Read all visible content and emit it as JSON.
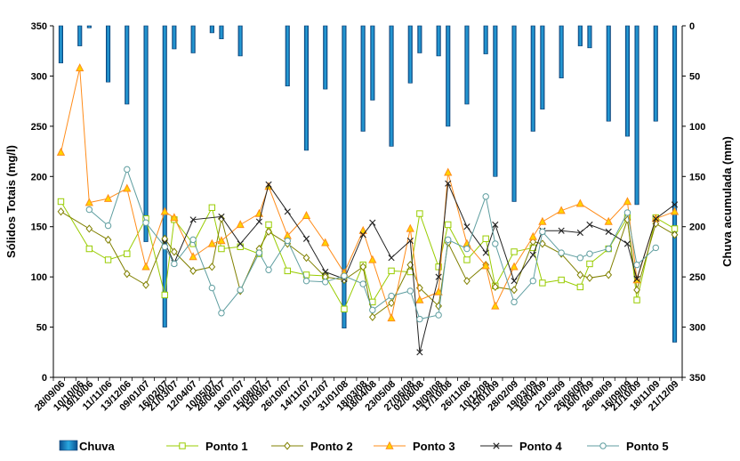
{
  "chart_data": {
    "type": "bar+line",
    "title": "",
    "ylabel_left": "Sólidos Totais (mg/l)",
    "ylabel_right": "Chuva acumulada (mm)",
    "ylim_left": [
      0,
      350
    ],
    "yticks_left": [
      "0",
      "50",
      "100",
      "150",
      "200",
      "250",
      "300",
      "350"
    ],
    "ylim_right_inverted": [
      0,
      350
    ],
    "yticks_right": [
      "0",
      "50",
      "100",
      "150",
      "200",
      "250",
      "300",
      "350"
    ],
    "categories": [
      "28/09/06",
      "10/10/06",
      "19/10/06",
      "11/11/06",
      "13/12/06",
      "09/01/07",
      "16/02/07",
      "21/03/07",
      "12/04/07",
      "10/05/07",
      "28/06/07",
      "18/07/07",
      "15/08/07",
      "15/09/07",
      "26/10/07",
      "14/11/07",
      "10/12/07",
      "31/01/08",
      "18/03/08",
      "18/04/08",
      "23/05/08",
      "27/06/08",
      "02/08/08",
      "19/09/08",
      "17/10/08",
      "26/11/08",
      "10/12/08",
      "15/01/09",
      "28/02/09",
      "19/03/09",
      "16/04/09",
      "21/05/09",
      "26/06/09",
      "16/07/09",
      "26/08/09",
      "16/09/09",
      "21/10/09",
      "18/11/09",
      "21/12/09"
    ],
    "n_slots": 56,
    "tick_slots": [
      0,
      2,
      3,
      5,
      7,
      9,
      11,
      12,
      14,
      16,
      17,
      19,
      21,
      22,
      24,
      26,
      28,
      30,
      32,
      33,
      35,
      37,
      38,
      40,
      41,
      43,
      45,
      46,
      48,
      50,
      51,
      53,
      55,
      56,
      58,
      60,
      61,
      63,
      65
    ],
    "series": [
      {
        "name": "Chuva",
        "type": "bar",
        "axis": "right",
        "color": "#1f8fc8",
        "points": [
          [
            0,
            37
          ],
          [
            1,
            20
          ],
          [
            2,
            2
          ],
          [
            3,
            56
          ],
          [
            4,
            78
          ],
          [
            5,
            215
          ],
          [
            6,
            300
          ],
          [
            7,
            23
          ],
          [
            8,
            27
          ],
          [
            9,
            7
          ],
          [
            10,
            13
          ],
          [
            11,
            30
          ],
          [
            12,
            0
          ],
          [
            13,
            0
          ],
          [
            14,
            60
          ],
          [
            15,
            124
          ],
          [
            16,
            63
          ],
          [
            17,
            301
          ],
          [
            18,
            105
          ],
          [
            19,
            74
          ],
          [
            20,
            120
          ],
          [
            21,
            57
          ],
          [
            22,
            27
          ],
          [
            23,
            30
          ],
          [
            24,
            100
          ],
          [
            25,
            78
          ],
          [
            26,
            28
          ],
          [
            27,
            150
          ],
          [
            28,
            175
          ],
          [
            29,
            105
          ],
          [
            30,
            83
          ],
          [
            31,
            52
          ],
          [
            32,
            20
          ],
          [
            33,
            22
          ],
          [
            34,
            95
          ],
          [
            35,
            110
          ],
          [
            36,
            178
          ],
          [
            37,
            95
          ],
          [
            38,
            315
          ]
        ]
      },
      {
        "name": "Ponto 1",
        "type": "line",
        "axis": "left",
        "color": "#99cc00",
        "marker": "square",
        "points": [
          [
            0,
            175
          ],
          [
            2,
            128
          ],
          [
            3,
            117
          ],
          [
            4,
            123
          ],
          [
            5,
            158
          ],
          [
            6,
            82
          ],
          [
            7,
            157
          ],
          [
            8,
            133
          ],
          [
            9,
            169
          ],
          [
            10,
            128
          ],
          [
            11,
            130
          ],
          [
            12,
            123
          ],
          [
            13,
            152
          ],
          [
            14,
            106
          ],
          [
            15,
            102
          ],
          [
            16,
            101
          ],
          [
            17,
            68
          ],
          [
            18,
            112
          ],
          [
            19,
            75
          ],
          [
            20,
            106
          ],
          [
            21,
            105
          ],
          [
            22,
            163
          ],
          [
            23,
            110
          ],
          [
            24,
            152
          ],
          [
            25,
            117
          ],
          [
            26,
            138
          ],
          [
            27,
            91
          ],
          [
            28,
            125
          ],
          [
            29,
            129
          ],
          [
            30,
            94
          ],
          [
            31,
            97
          ],
          [
            32,
            90
          ],
          [
            33,
            113
          ],
          [
            34,
            128
          ],
          [
            35,
            159
          ],
          [
            36,
            77
          ],
          [
            37,
            159
          ],
          [
            38,
            148
          ]
        ]
      },
      {
        "name": "Ponto 2",
        "type": "line",
        "axis": "left",
        "color": "#808000",
        "marker": "diamond",
        "points": [
          [
            0,
            165
          ],
          [
            2,
            148
          ],
          [
            3,
            137
          ],
          [
            4,
            103
          ],
          [
            5,
            92
          ],
          [
            6,
            138
          ],
          [
            7,
            125
          ],
          [
            8,
            106
          ],
          [
            9,
            110
          ],
          [
            10,
            158
          ],
          [
            11,
            86
          ],
          [
            12,
            128
          ],
          [
            13,
            145
          ],
          [
            14,
            133
          ],
          [
            15,
            119
          ],
          [
            16,
            100
          ],
          [
            17,
            97
          ],
          [
            18,
            110
          ],
          [
            19,
            60
          ],
          [
            20,
            74
          ],
          [
            21,
            112
          ],
          [
            22,
            89
          ],
          [
            23,
            71
          ],
          [
            24,
            134
          ],
          [
            25,
            96
          ],
          [
            26,
            112
          ],
          [
            27,
            90
          ],
          [
            28,
            87
          ],
          [
            29,
            135
          ],
          [
            30,
            133
          ],
          [
            31,
            123
          ],
          [
            32,
            102
          ],
          [
            33,
            99
          ],
          [
            34,
            102
          ],
          [
            35,
            157
          ],
          [
            36,
            87
          ],
          [
            37,
            153
          ],
          [
            38,
            142
          ]
        ]
      },
      {
        "name": "Ponto 3",
        "type": "line",
        "axis": "left",
        "color": "#ff8c1a",
        "marker": "triangle",
        "points": [
          [
            0,
            224
          ],
          [
            1,
            308
          ],
          [
            2,
            174
          ],
          [
            3,
            178
          ],
          [
            4,
            188
          ],
          [
            5,
            110
          ],
          [
            6,
            165
          ],
          [
            7,
            159
          ],
          [
            8,
            120
          ],
          [
            9,
            133
          ],
          [
            10,
            136
          ],
          [
            11,
            152
          ],
          [
            12,
            163
          ],
          [
            13,
            190
          ],
          [
            14,
            141
          ],
          [
            15,
            161
          ],
          [
            16,
            134
          ],
          [
            17,
            104
          ],
          [
            18,
            146
          ],
          [
            19,
            117
          ],
          [
            20,
            59
          ],
          [
            21,
            148
          ],
          [
            22,
            77
          ],
          [
            23,
            85
          ],
          [
            24,
            204
          ],
          [
            25,
            133
          ],
          [
            26,
            111
          ],
          [
            27,
            71
          ],
          [
            28,
            110
          ],
          [
            29,
            140
          ],
          [
            30,
            155
          ],
          [
            31,
            166
          ],
          [
            32,
            173
          ],
          [
            34,
            155
          ],
          [
            35,
            175
          ],
          [
            36,
            97
          ],
          [
            37,
            158
          ],
          [
            38,
            165
          ]
        ]
      },
      {
        "name": "Ponto 4",
        "type": "line",
        "axis": "left",
        "color": "#222222",
        "marker": "x",
        "points": [
          [
            6,
            134
          ],
          [
            7,
            114
          ],
          [
            8,
            157
          ],
          [
            10,
            160
          ],
          [
            11,
            133
          ],
          [
            12,
            155
          ],
          [
            13,
            192
          ],
          [
            14,
            165
          ],
          [
            15,
            138
          ],
          [
            16,
            105
          ],
          [
            17,
            98
          ],
          [
            18,
            142
          ],
          [
            19,
            154
          ],
          [
            20,
            119
          ],
          [
            21,
            136
          ],
          [
            22,
            25
          ],
          [
            23,
            100
          ],
          [
            24,
            193
          ],
          [
            25,
            150
          ],
          [
            26,
            124
          ],
          [
            27,
            152
          ],
          [
            28,
            96
          ],
          [
            29,
            122
          ],
          [
            30,
            146
          ],
          [
            31,
            146
          ],
          [
            32,
            144
          ],
          [
            33,
            152
          ],
          [
            34,
            145
          ],
          [
            35,
            133
          ],
          [
            36,
            98
          ],
          [
            37,
            158
          ],
          [
            38,
            172
          ]
        ]
      },
      {
        "name": "Ponto 5",
        "type": "line",
        "axis": "left",
        "color": "#5f9ea0",
        "marker": "circle",
        "points": [
          [
            2,
            167
          ],
          [
            3,
            151
          ],
          [
            4,
            207
          ],
          [
            5,
            154
          ],
          [
            6,
            130
          ],
          [
            7,
            113
          ],
          [
            8,
            137
          ],
          [
            9,
            89
          ],
          [
            10,
            64
          ],
          [
            11,
            87
          ],
          [
            12,
            124
          ],
          [
            13,
            107
          ],
          [
            14,
            136
          ],
          [
            15,
            96
          ],
          [
            16,
            95
          ],
          [
            17,
            101
          ],
          [
            18,
            93
          ],
          [
            19,
            67
          ],
          [
            20,
            81
          ],
          [
            21,
            86
          ],
          [
            22,
            58
          ],
          [
            23,
            62
          ],
          [
            24,
            137
          ],
          [
            25,
            128
          ],
          [
            26,
            180
          ],
          [
            27,
            133
          ],
          [
            28,
            75
          ],
          [
            29,
            96
          ],
          [
            30,
            145
          ],
          [
            31,
            124
          ],
          [
            32,
            119
          ],
          [
            33,
            123
          ],
          [
            34,
            128
          ],
          [
            35,
            164
          ],
          [
            36,
            112
          ],
          [
            37,
            129
          ]
        ]
      }
    ],
    "legend_position": "bottom",
    "grid": false
  }
}
